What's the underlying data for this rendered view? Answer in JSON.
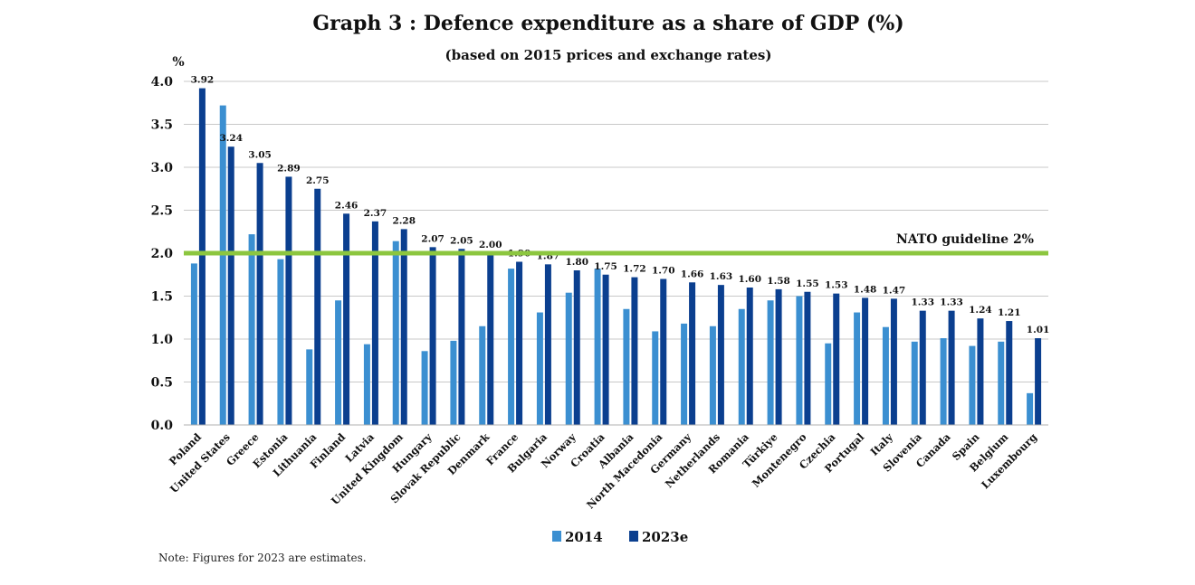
{
  "chart_data": {
    "type": "bar",
    "title": "Graph 3 : Defence expenditure as a share of GDP (%)",
    "subtitle": "(based on 2015 prices and exchange rates)",
    "ylabel": "%",
    "ylim": [
      0,
      4.0
    ],
    "yticks": [
      "0.0",
      "0.5",
      "1.0",
      "1.5",
      "2.0",
      "2.5",
      "3.0",
      "3.5",
      "4.0"
    ],
    "grid": true,
    "categories": [
      "Poland",
      "United States",
      "Greece",
      "Estonia",
      "Lithuania",
      "Finland",
      "Latvia",
      "United Kingdom",
      "Hungary",
      "Slovak Republic",
      "Denmark",
      "France",
      "Bulgaria",
      "Norway",
      "Croatia",
      "Albania",
      "North Macedonia",
      "Germany",
      "Netherlands",
      "Romania",
      "Türkiye",
      "Montenegro",
      "Czechia",
      "Portugal",
      "Italy",
      "Slovenia",
      "Canada",
      "Spain",
      "Belgium",
      "Luxembourg"
    ],
    "series": [
      {
        "name": "2014",
        "color": "#3b8fd1",
        "values": [
          1.88,
          3.72,
          2.22,
          1.93,
          0.88,
          1.45,
          0.94,
          2.14,
          0.86,
          0.98,
          1.15,
          1.82,
          1.31,
          1.54,
          1.82,
          1.35,
          1.09,
          1.18,
          1.15,
          1.35,
          1.45,
          1.5,
          0.95,
          1.31,
          1.14,
          0.97,
          1.01,
          0.92,
          0.97,
          0.37
        ]
      },
      {
        "name": "2023e",
        "color": "#0b3f8f",
        "values": [
          3.92,
          3.24,
          3.05,
          2.89,
          2.75,
          2.46,
          2.37,
          2.28,
          2.07,
          2.05,
          2.0,
          1.9,
          1.87,
          1.8,
          1.75,
          1.72,
          1.7,
          1.66,
          1.63,
          1.6,
          1.58,
          1.55,
          1.53,
          1.48,
          1.47,
          1.33,
          1.33,
          1.24,
          1.21,
          1.01
        ],
        "labels": [
          "3.92",
          "3.24",
          "3.05",
          "2.89",
          "2.75",
          "2.46",
          "2.37",
          "2.28",
          "2.07",
          "2.05",
          "2.00",
          "1.90",
          "1.87",
          "1.80",
          "1.75",
          "1.72",
          "1.70",
          "1.66",
          "1.63",
          "1.60",
          "1.58",
          "1.55",
          "1.53",
          "1.48",
          "1.47",
          "1.33",
          "1.33",
          "1.24",
          "1.21",
          "1.01"
        ]
      }
    ],
    "reference_line": {
      "value": 2.0,
      "label": "NATO guideline 2%",
      "color": "#8cc63f"
    },
    "legend": {
      "placement": "bottom-center",
      "entries": [
        "2014",
        "2023e"
      ]
    },
    "note": "Note: Figures for 2023 are estimates."
  }
}
